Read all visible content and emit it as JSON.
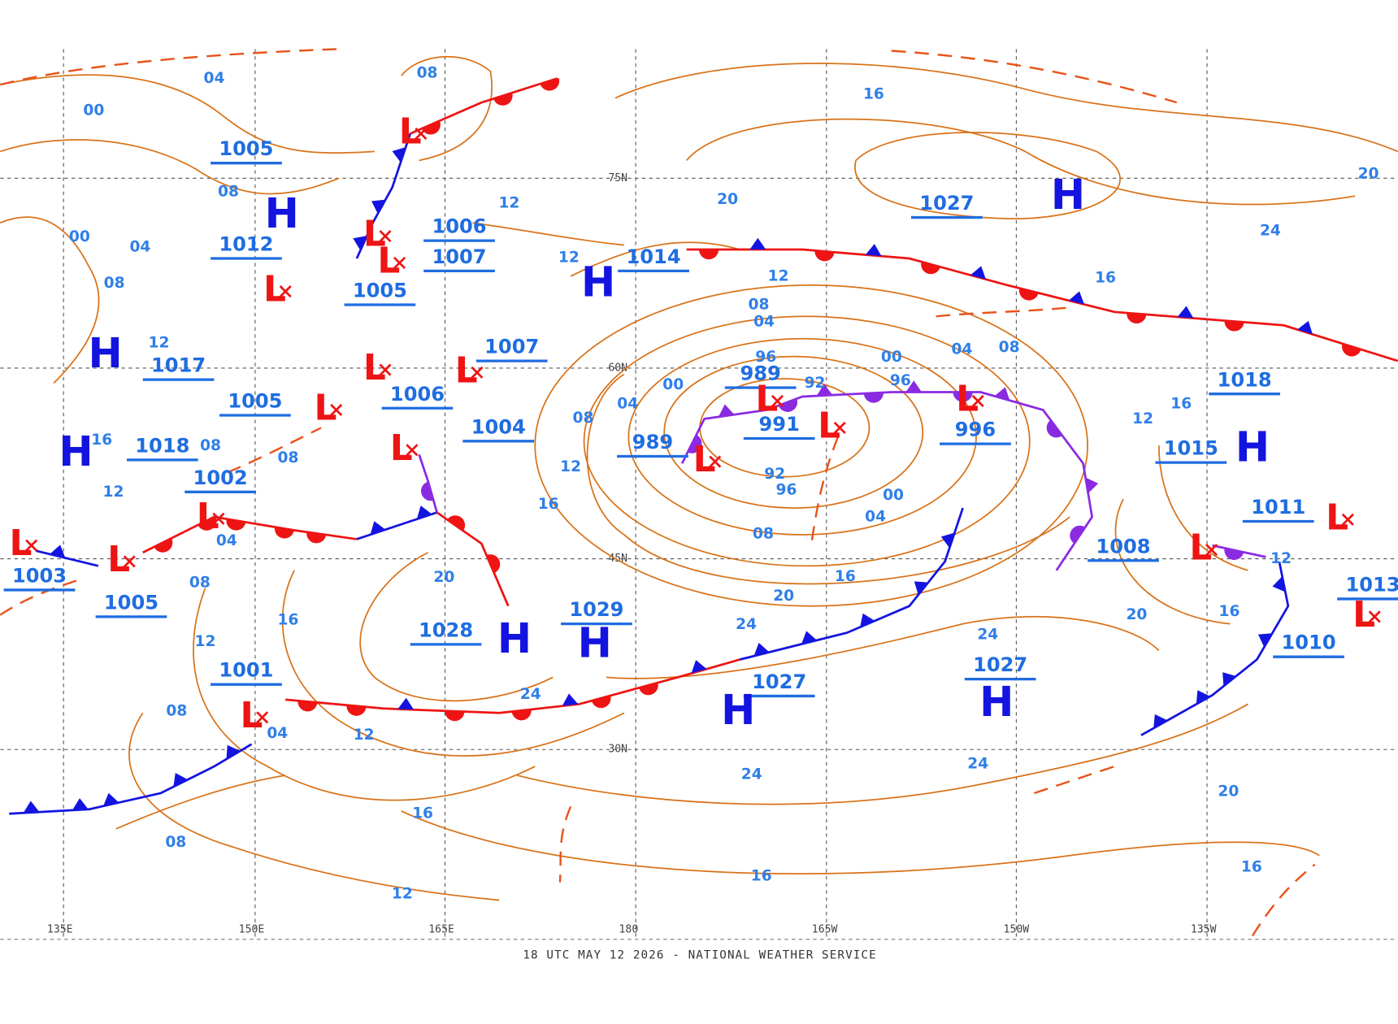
{
  "footer": "18 UTC MAY 12 2026 - NATIONAL WEATHER SERVICE",
  "longitude_labels": [
    "135E",
    "150E",
    "165E",
    "180",
    "165W",
    "150W",
    "135W"
  ],
  "latitude_labels": [
    "75N",
    "60N",
    "45N",
    "30N"
  ],
  "pressure_values": [
    "1005",
    "1012",
    "1005",
    "1006",
    "1007",
    "1017",
    "1005",
    "1007",
    "1006",
    "1004",
    "1018",
    "1002",
    "1003",
    "1005",
    "1001",
    "1028",
    "1029",
    "1014",
    "989",
    "991",
    "989",
    "996",
    "1027",
    "1018",
    "1015",
    "1011",
    "1008",
    "1010",
    "1027",
    "1027",
    "1013"
  ],
  "highs": [
    "H",
    "H",
    "H",
    "H",
    "H",
    "H",
    "H",
    "H",
    "H",
    "H"
  ],
  "lows": [
    "L",
    "L",
    "L",
    "L",
    "L",
    "L",
    "L",
    "L",
    "L",
    "L",
    "L",
    "L",
    "L",
    "L",
    "L",
    "L",
    "L",
    "L",
    "L"
  ],
  "isobar_labels": [
    "04",
    "08",
    "00",
    "08",
    "00",
    "04",
    "08",
    "12",
    "12",
    "16",
    "20",
    "12",
    "08",
    "04",
    "96",
    "92",
    "04",
    "08",
    "00",
    "96",
    "00",
    "04",
    "08",
    "12",
    "16",
    "92",
    "96",
    "00",
    "04",
    "08",
    "16",
    "20",
    "24",
    "24",
    "24",
    "20",
    "16",
    "12",
    "08",
    "04",
    "12",
    "16",
    "08",
    "12",
    "16",
    "24",
    "24",
    "20",
    "16",
    "20",
    "16",
    "12",
    "16",
    "12",
    "16",
    "24",
    "20",
    "04",
    "08",
    "08",
    "08",
    "12",
    "16",
    "12"
  ]
}
